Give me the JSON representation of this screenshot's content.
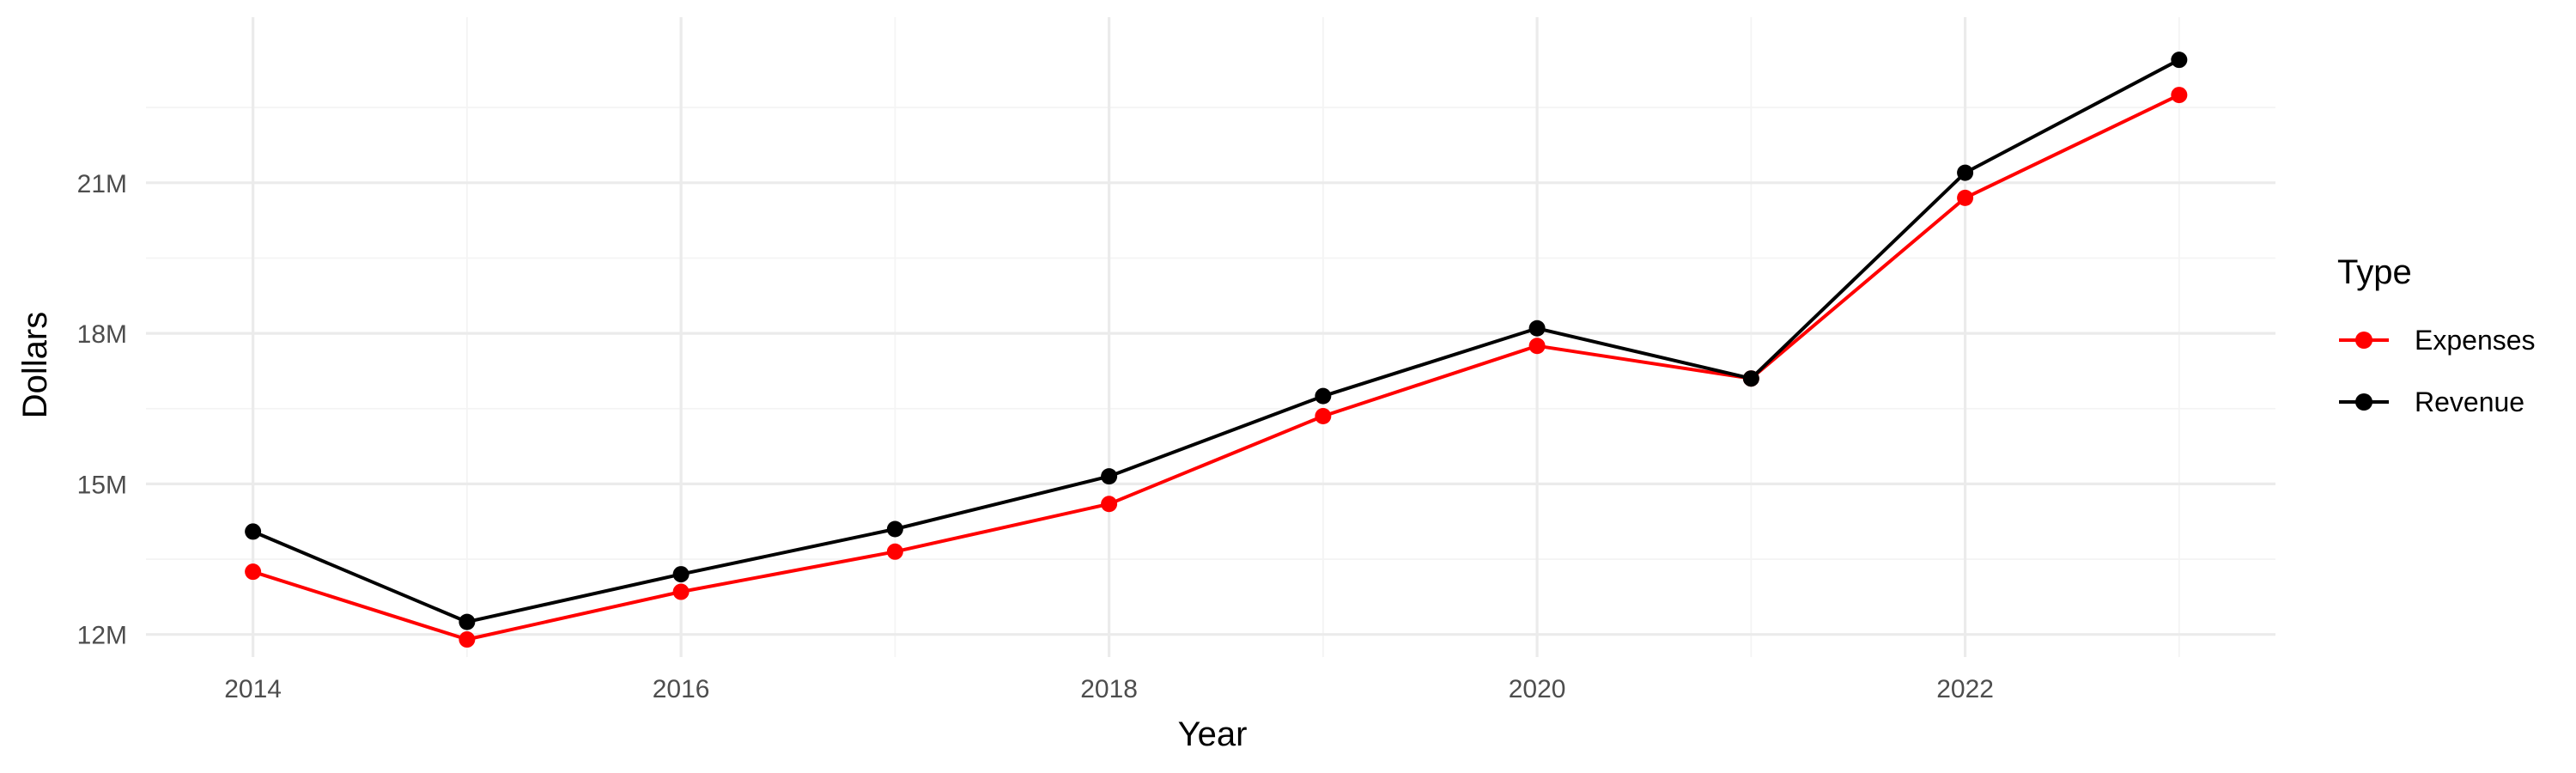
{
  "chart_data": {
    "type": "line",
    "xlabel": "Year",
    "ylabel": "Dollars",
    "x": [
      2014,
      2015,
      2016,
      2017,
      2018,
      2019,
      2020,
      2021,
      2022,
      2023
    ],
    "xlim": [
      2013.5,
      2023.45
    ],
    "xticks": [
      2014,
      2016,
      2018,
      2020,
      2022
    ],
    "xtick_labels": [
      "2014",
      "2016",
      "2018",
      "2020",
      "2022"
    ],
    "ylim": [
      11.55,
      24.3
    ],
    "yticks": [
      12,
      15,
      18,
      21
    ],
    "ytick_labels": [
      "12M",
      "15M",
      "18M",
      "21M"
    ],
    "y_units": "millions of dollars",
    "grid": true,
    "legend": {
      "title": "Type",
      "placement": "right"
    },
    "series": [
      {
        "name": "Expenses",
        "color": "#ff0000",
        "values": [
          13.25,
          11.9,
          12.85,
          13.65,
          14.6,
          16.35,
          17.75,
          17.1,
          20.7,
          22.75
        ]
      },
      {
        "name": "Revenue",
        "color": "#000000",
        "values": [
          14.05,
          12.25,
          13.2,
          14.1,
          15.15,
          16.75,
          18.1,
          17.1,
          21.2,
          23.45
        ]
      }
    ]
  }
}
